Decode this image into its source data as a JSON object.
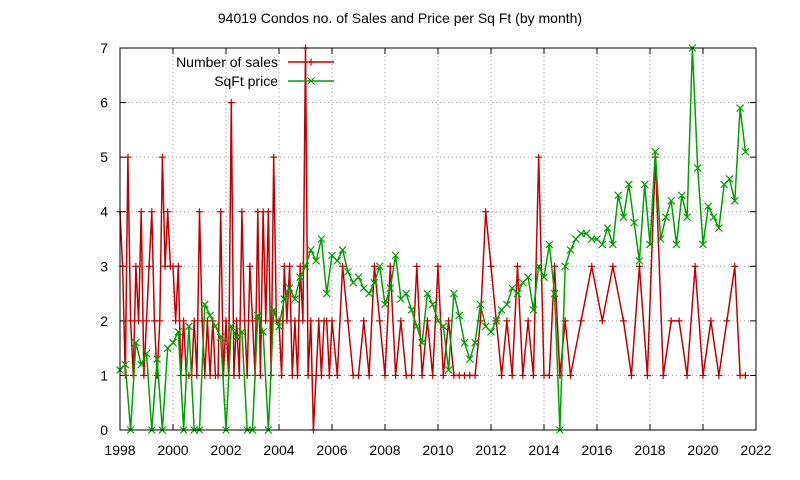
{
  "chart_data": {
    "type": "line",
    "title": "94019 Condos no. of Sales and Price per Sq Ft (by month)",
    "xlabel": "",
    "ylabel": "",
    "xlim": [
      1998,
      2022
    ],
    "ylim": [
      0,
      7
    ],
    "x_ticks": [
      1998,
      2000,
      2002,
      2004,
      2006,
      2008,
      2010,
      2012,
      2014,
      2016,
      2018,
      2020,
      2022
    ],
    "y_ticks": [
      0,
      1,
      2,
      3,
      4,
      5,
      6,
      7
    ],
    "grid": true,
    "legend_position": "top-left",
    "series": [
      {
        "name": "Number of sales",
        "color": "#c00000",
        "marker": "plus",
        "x": [
          1998.0,
          1998.1,
          1998.2,
          1998.3,
          1998.4,
          1998.5,
          1998.6,
          1998.7,
          1998.8,
          1998.9,
          1999.0,
          1999.1,
          1999.2,
          1999.3,
          1999.4,
          1999.5,
          1999.6,
          1999.7,
          1999.8,
          1999.9,
          2000.0,
          2000.1,
          2000.2,
          2000.3,
          2000.4,
          2000.5,
          2000.6,
          2000.7,
          2000.8,
          2000.9,
          2001.0,
          2001.1,
          2001.2,
          2001.3,
          2001.4,
          2001.5,
          2001.6,
          2001.7,
          2001.8,
          2001.9,
          2002.0,
          2002.1,
          2002.2,
          2002.3,
          2002.4,
          2002.5,
          2002.6,
          2002.7,
          2002.8,
          2002.9,
          2003.0,
          2003.1,
          2003.2,
          2003.3,
          2003.4,
          2003.5,
          2003.6,
          2003.7,
          2003.8,
          2003.9,
          2004.0,
          2004.1,
          2004.2,
          2004.3,
          2004.4,
          2004.5,
          2004.6,
          2004.7,
          2004.8,
          2004.9,
          2005.0,
          2005.1,
          2005.2,
          2005.3,
          2005.4,
          2005.5,
          2005.6,
          2005.7,
          2005.8,
          2005.9,
          2006.0,
          2006.2,
          2006.4,
          2006.6,
          2006.8,
          2007.0,
          2007.2,
          2007.4,
          2007.6,
          2007.8,
          2008.0,
          2008.2,
          2008.4,
          2008.6,
          2008.8,
          2009.0,
          2009.2,
          2009.4,
          2009.6,
          2009.8,
          2010.0,
          2010.2,
          2010.4,
          2010.6,
          2010.8,
          2011.0,
          2011.2,
          2011.4,
          2011.6,
          2011.8,
          2012.0,
          2012.2,
          2012.4,
          2012.6,
          2012.8,
          2013.0,
          2013.2,
          2013.4,
          2013.6,
          2013.8,
          2014.0,
          2014.2,
          2014.4,
          2014.6,
          2014.8,
          2015.0,
          2015.4,
          2015.8,
          2016.2,
          2016.6,
          2017.0,
          2017.3,
          2017.6,
          2017.9,
          2018.2,
          2018.5,
          2018.8,
          2019.1,
          2019.4,
          2019.7,
          2020.0,
          2020.3,
          2020.6,
          2020.9,
          2021.2,
          2021.4,
          2021.6
        ],
        "y": [
          4,
          3,
          1,
          5,
          2,
          1,
          3,
          2,
          4,
          1,
          2,
          3,
          4,
          2,
          1,
          2,
          5,
          3,
          4,
          3,
          3,
          2,
          3,
          1,
          2,
          1,
          1,
          1,
          2,
          1,
          4,
          2,
          1,
          2,
          1,
          2,
          1,
          1,
          4,
          1,
          2,
          1,
          6,
          1,
          2,
          1,
          4,
          2,
          1,
          3,
          2,
          1,
          4,
          1,
          4,
          2,
          4,
          1,
          5,
          2,
          2,
          1,
          3,
          2,
          3,
          1,
          2,
          1,
          3,
          2,
          7,
          1,
          2,
          0,
          1,
          2,
          1,
          2,
          2,
          1,
          2,
          1,
          3,
          2,
          1,
          1,
          2,
          1,
          3,
          2,
          1,
          3,
          1,
          2,
          1,
          1,
          3,
          1,
          2,
          1,
          3,
          1,
          2,
          1,
          1,
          1,
          1,
          1,
          2,
          4,
          3,
          2,
          1,
          2,
          1,
          3,
          1,
          2,
          1,
          5,
          1,
          1,
          3,
          1,
          2,
          1,
          2,
          3,
          2,
          3,
          2,
          1,
          3,
          1,
          5,
          1,
          2,
          2,
          1,
          3,
          1,
          2,
          1,
          2,
          3,
          1,
          1
        ],
        "y_labels": [
          "4",
          "3",
          "1",
          "5",
          "2",
          "1",
          "3",
          "2",
          "4",
          "1",
          "2",
          "3",
          "4",
          "2",
          "1",
          "2",
          "5",
          "3",
          "4",
          "3",
          "3",
          "2",
          "3",
          "1",
          "2",
          "1",
          "1",
          "1",
          "2",
          "1",
          "4",
          "2",
          "1",
          "2",
          "1",
          "2",
          "1",
          "1",
          "4",
          "1",
          "2",
          "1",
          "6",
          "1",
          "2",
          "1",
          "4",
          "2",
          "1",
          "3",
          "2",
          "1",
          "4",
          "1",
          "4",
          "2",
          "4",
          "1",
          "5",
          "2",
          "2",
          "1",
          "3",
          "2",
          "3",
          "1",
          "2",
          "1",
          "3",
          "2",
          "7",
          "1",
          "2",
          "0",
          "1",
          "2",
          "1",
          "2",
          "2",
          "1",
          "2",
          "1",
          "3",
          "2",
          "1",
          "1",
          "2",
          "1",
          "3",
          "2",
          "1",
          "3",
          "1",
          "2",
          "1",
          "1",
          "3",
          "1",
          "2",
          "1",
          "3",
          "1",
          "2",
          "1",
          "1",
          "1",
          "1",
          "1",
          "2",
          "4",
          "3",
          "2",
          "1",
          "2",
          "1",
          "3",
          "1",
          "2",
          "1",
          "5",
          "1",
          "1",
          "3",
          "1",
          "2",
          "1",
          "2",
          "3",
          "2",
          "3",
          "2",
          "1",
          "3",
          "1",
          "5",
          "1",
          "2",
          "2",
          "1",
          "3",
          "1",
          "2",
          "1",
          "2",
          "3",
          "1",
          "1"
        ]
      },
      {
        "name": "SqFt price",
        "color": "#00a000",
        "marker": "x",
        "x": [
          1998.0,
          1998.2,
          1998.4,
          1998.6,
          1998.8,
          1999.0,
          1999.2,
          1999.4,
          1999.6,
          1999.8,
          2000.0,
          2000.2,
          2000.4,
          2000.6,
          2000.8,
          2001.0,
          2001.2,
          2001.4,
          2001.6,
          2001.8,
          2002.0,
          2002.2,
          2002.4,
          2002.6,
          2002.8,
          2003.0,
          2003.2,
          2003.4,
          2003.6,
          2003.8,
          2004.0,
          2004.2,
          2004.4,
          2004.6,
          2004.8,
          2005.0,
          2005.2,
          2005.4,
          2005.6,
          2005.8,
          2006.0,
          2006.2,
          2006.4,
          2006.6,
          2006.8,
          2007.0,
          2007.2,
          2007.4,
          2007.6,
          2007.8,
          2008.0,
          2008.2,
          2008.4,
          2008.6,
          2008.8,
          2009.0,
          2009.2,
          2009.4,
          2009.6,
          2009.8,
          2010.0,
          2010.2,
          2010.4,
          2010.6,
          2010.8,
          2011.0,
          2011.2,
          2011.4,
          2011.6,
          2011.8,
          2012.0,
          2012.2,
          2012.4,
          2012.6,
          2012.8,
          2013.0,
          2013.2,
          2013.4,
          2013.6,
          2013.8,
          2014.0,
          2014.2,
          2014.4,
          2014.6,
          2014.8,
          2015.0,
          2015.2,
          2015.4,
          2015.6,
          2015.8,
          2016.0,
          2016.2,
          2016.4,
          2016.6,
          2016.8,
          2017.0,
          2017.2,
          2017.4,
          2017.6,
          2017.8,
          2018.0,
          2018.2,
          2018.4,
          2018.6,
          2018.8,
          2019.0,
          2019.2,
          2019.4,
          2019.6,
          2019.8,
          2020.0,
          2020.2,
          2020.4,
          2020.6,
          2020.8,
          2021.0,
          2021.2,
          2021.4,
          2021.6
        ],
        "y": [
          1.1,
          1.2,
          0,
          1.6,
          1.2,
          1.4,
          0,
          1.3,
          0,
          1.5,
          1.6,
          1.8,
          0,
          1.9,
          0,
          0,
          2.3,
          2.1,
          1.9,
          1.7,
          0,
          1.9,
          1.7,
          1.8,
          0,
          0,
          2.1,
          1.8,
          0,
          2.2,
          1.9,
          2.4,
          2.6,
          2.4,
          2.8,
          3.0,
          3.3,
          3.1,
          3.5,
          2.5,
          3.2,
          3.1,
          3.3,
          2.9,
          2.7,
          2.8,
          2.6,
          2.5,
          2.7,
          3.0,
          2.3,
          2.6,
          3.2,
          2.4,
          2.5,
          2.2,
          1.9,
          1.6,
          2.5,
          2.3,
          2.0,
          1.9,
          1.1,
          2.5,
          2.1,
          1.6,
          1.3,
          1.6,
          2.3,
          1.9,
          1.8,
          2.0,
          2.2,
          2.3,
          2.6,
          2.5,
          2.7,
          2.8,
          2.2,
          3.0,
          2.8,
          3.4,
          2.5,
          0,
          3.0,
          3.3,
          3.5,
          3.6,
          3.6,
          3.5,
          3.5,
          3.4,
          3.7,
          3.4,
          4.3,
          3.9,
          4.5,
          3.8,
          3.1,
          4.5,
          3.4,
          5.1,
          3.5,
          3.9,
          4.2,
          3.4,
          4.3,
          3.9,
          7.0,
          4.8,
          3.4,
          4.1,
          3.9,
          3.7,
          4.5,
          4.6,
          4.2,
          5.9,
          5.1
        ]
      }
    ]
  }
}
